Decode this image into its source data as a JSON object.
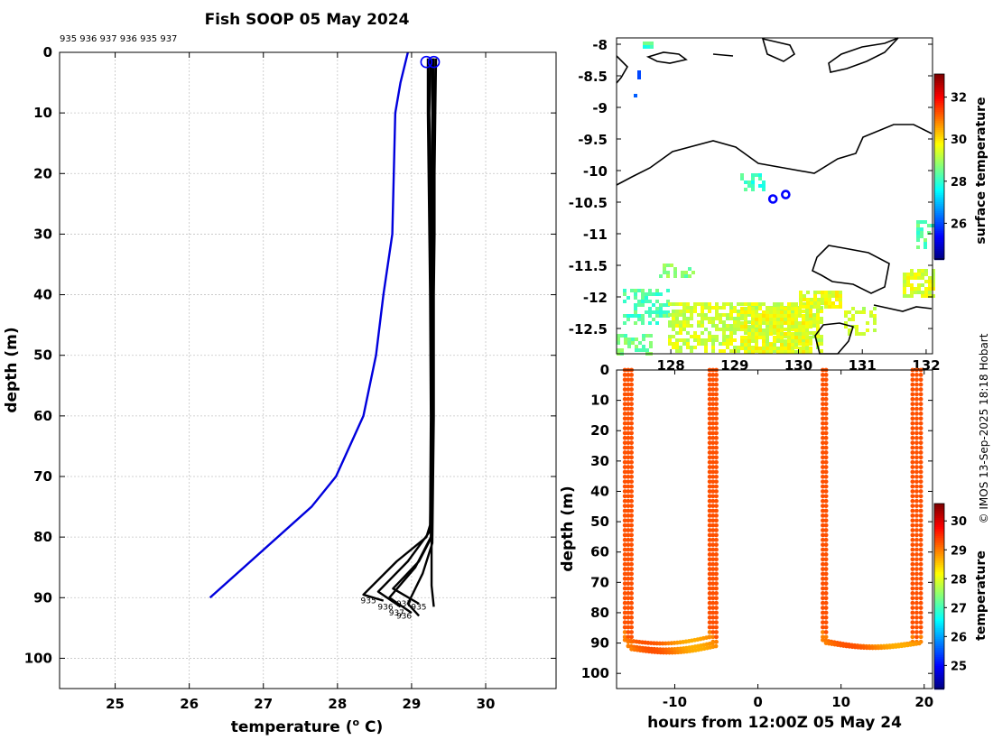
{
  "title": "Fish SOOP 05 May 2024",
  "profile_ids_text": "935 936 937 936 935 937",
  "credit": "© IMOS 13-Sep-2025 18:18 Hobart",
  "colors": {
    "climatology": "#0000dd",
    "profiles": "#000000",
    "marker": "#0000ff"
  },
  "chart_data": [
    {
      "name": "temperature-profile",
      "type": "line",
      "xlabel": "temperature (° C)",
      "xlabel_main": "temperature (",
      "xlabel_sup": "o",
      "xlabel_tail": " C)",
      "ylabel": "depth (m)",
      "xlim": [
        24.25,
        30.95
      ],
      "ylim": [
        105,
        0
      ],
      "xticks": [
        25,
        26,
        27,
        28,
        29,
        30
      ],
      "yticks": [
        0,
        10,
        20,
        30,
        40,
        50,
        60,
        70,
        80,
        90,
        100
      ],
      "climatology": {
        "name": "climatology",
        "temp": [
          28.95,
          28.85,
          28.78,
          28.76,
          28.74,
          28.62,
          28.52,
          28.35,
          27.98,
          27.65,
          26.28
        ],
        "depth": [
          0,
          5,
          10,
          20,
          30,
          40,
          50,
          60,
          70,
          75,
          90
        ]
      },
      "profiles": [
        {
          "id": "935",
          "temp": [
            29.22,
            29.22,
            29.23,
            29.24,
            29.25,
            29.26,
            29.25,
            29.2,
            28.8,
            28.35,
            28.62
          ],
          "depth": [
            1,
            10,
            20,
            30,
            40,
            60,
            78,
            80,
            84,
            89.5,
            90.5
          ]
        },
        {
          "id": "936",
          "temp": [
            29.27,
            29.28,
            29.27,
            29.28,
            29.26,
            29.27,
            29.25,
            28.95,
            28.55,
            28.85
          ],
          "depth": [
            1,
            10,
            20,
            30,
            40,
            60,
            79,
            84,
            89,
            91.5
          ]
        },
        {
          "id": "937",
          "temp": [
            29.3,
            29.3,
            29.29,
            29.3,
            29.29,
            29.28,
            29.26,
            29.05,
            28.7,
            29.0
          ],
          "depth": [
            1,
            10,
            20,
            30,
            40,
            60,
            80,
            85,
            90,
            92.5
          ]
        },
        {
          "id": "936",
          "temp": [
            29.33,
            29.32,
            29.31,
            29.31,
            29.3,
            29.3,
            29.28,
            29.15,
            28.95,
            29.1
          ],
          "depth": [
            1,
            10,
            20,
            30,
            40,
            60,
            81,
            86,
            91,
            93
          ]
        },
        {
          "id": "935",
          "temp": [
            29.25,
            29.24,
            29.25,
            29.26,
            29.27,
            29.27,
            29.27,
            29.27,
            29.3
          ],
          "depth": [
            1,
            10,
            20,
            30,
            40,
            60,
            80,
            88,
            91.5
          ]
        },
        {
          "id": "937",
          "temp": [
            29.29,
            29.3,
            29.29,
            29.29,
            29.28,
            29.28,
            29.27,
            29.1,
            28.75,
            29.1
          ],
          "depth": [
            1,
            10,
            20,
            30,
            40,
            60,
            80,
            84,
            88.5,
            91
          ]
        }
      ],
      "surface_markers": [
        {
          "temp": 29.2,
          "depth": 1
        },
        {
          "temp": 29.3,
          "depth": 1
        }
      ]
    },
    {
      "name": "location-map",
      "type": "heatmap",
      "ylabel": "",
      "yticks": [
        -8,
        -8.5,
        -9,
        -9.5,
        -10,
        -10.5,
        -11,
        -11.5,
        -12,
        -12.5
      ],
      "yticks_label": [
        "-8",
        "-8.5",
        "-9",
        "-9.5",
        "-10",
        "-10.5",
        "-11",
        "-11.5",
        "-12",
        "-12.5"
      ],
      "xticks": [
        128,
        129,
        130,
        131,
        132
      ],
      "xticks_label": [
        "128",
        "129",
        "130",
        "131",
        "132"
      ],
      "ylim": [
        -12.9,
        -7.9
      ],
      "colorbar": {
        "label": "surface temperature",
        "min": 24.3,
        "max": 33.1,
        "ticks": [
          26,
          28,
          30,
          32
        ]
      },
      "vessel_positions": [
        {
          "lon": 129.6,
          "lat": -10.45
        },
        {
          "lon": 129.8,
          "lat": -10.38
        }
      ]
    },
    {
      "name": "time-depth-section",
      "type": "scatter",
      "xlabel": "hours from 12:00Z 05 May 24",
      "ylabel": "depth (m)",
      "xlim": [
        -17,
        21
      ],
      "ylim": [
        105,
        0
      ],
      "xticks": [
        -10,
        0,
        10,
        20
      ],
      "xticks_label": [
        "-10",
        "0",
        "10",
        "20"
      ],
      "yticks": [
        0,
        10,
        20,
        30,
        40,
        50,
        60,
        70,
        80,
        90,
        100
      ],
      "colorbar": {
        "label": "temperature",
        "min": 24.2,
        "max": 30.6,
        "ticks": [
          25,
          26,
          27,
          28,
          29,
          30
        ]
      },
      "casts": [
        {
          "hours": -16.0,
          "max_depth": 89,
          "temperature": 29.3
        },
        {
          "hours": -15.6,
          "max_depth": 91,
          "temperature": 29.3
        },
        {
          "hours": -15.2,
          "max_depth": 92,
          "temperature": 29.3
        },
        {
          "hours": -5.8,
          "max_depth": 88,
          "temperature": 29.3
        },
        {
          "hours": -5.4,
          "max_depth": 90,
          "temperature": 29.3
        },
        {
          "hours": -5.0,
          "max_depth": 91,
          "temperature": 29.3
        },
        {
          "hours": 7.8,
          "max_depth": 89,
          "temperature": 29.2
        },
        {
          "hours": 8.2,
          "max_depth": 90,
          "temperature": 29.2
        },
        {
          "hours": 18.6,
          "max_depth": 90,
          "temperature": 29.3
        },
        {
          "hours": 19.1,
          "max_depth": 91,
          "temperature": 29.3
        },
        {
          "hours": 19.6,
          "max_depth": 90,
          "temperature": 29.3
        }
      ]
    }
  ]
}
